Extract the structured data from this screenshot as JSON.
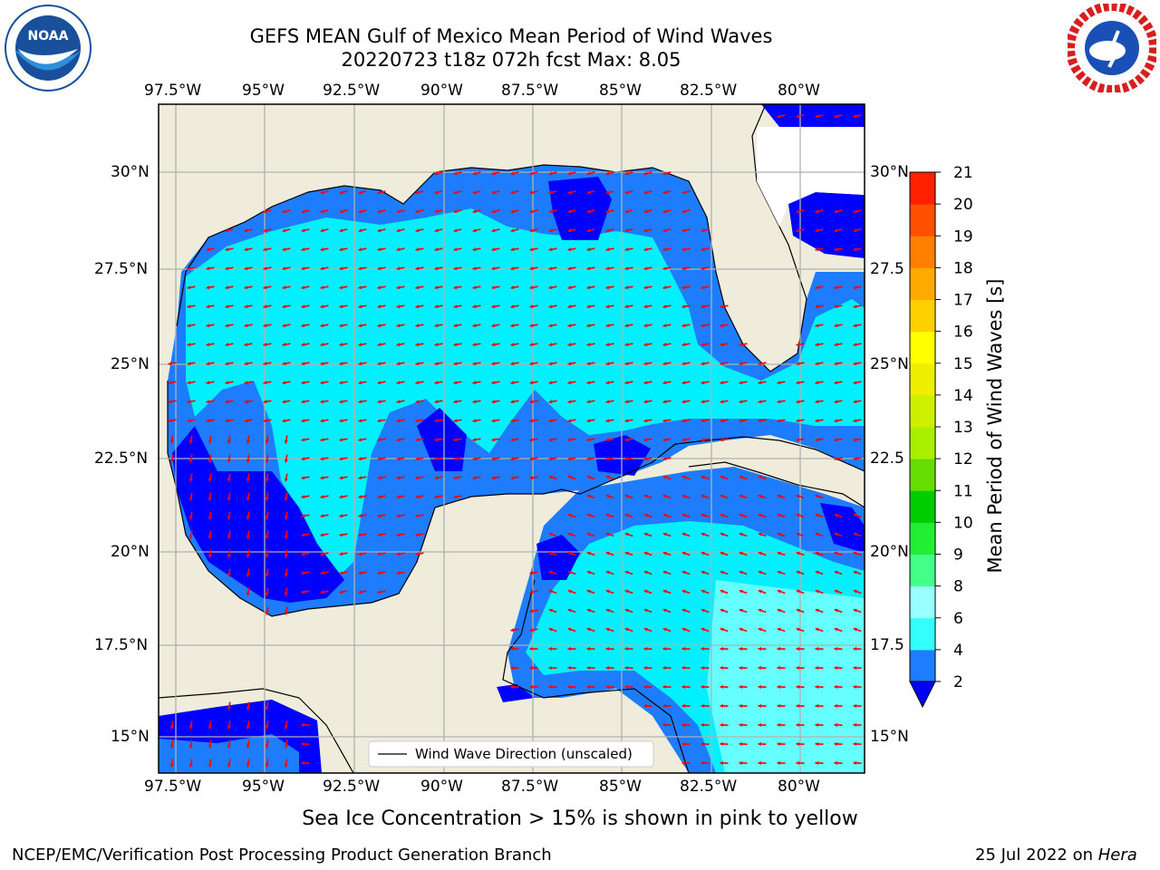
{
  "title": {
    "line1": "GEFS MEAN Gulf of Mexico Mean Period of Wind Waves",
    "line2": "20220723 t18z 072h fcst   Max: 8.05"
  },
  "logos": {
    "noaa": {
      "label": "NOAA",
      "icon": "noaa-logo-icon"
    },
    "nws": {
      "label": "NATIONAL WEATHER SERVICE",
      "icon": "nws-logo-icon"
    }
  },
  "map": {
    "lon_ticks": [
      "97.5°W",
      "95°W",
      "92.5°W",
      "90°W",
      "87.5°W",
      "85°W",
      "82.5°W",
      "80°W"
    ],
    "lat_ticks_left": [
      "30°N",
      "27.5°N",
      "25°N",
      "22.5°N",
      "20°N",
      "17.5°N",
      "15°N"
    ],
    "lat_ticks_right": [
      "30°N",
      "27.5",
      "25°N",
      "22.5",
      "20°N",
      "17.5",
      "15°N"
    ],
    "legend_label": "Wind Wave Direction (unscaled)",
    "colors": {
      "land": "#efecdc",
      "grid": "#b0b0b0",
      "arrow": "#ff0000",
      "band_2_4": "#0000ff",
      "band_4_6": "#1e7dff",
      "band_6_8": "#00e5ff",
      "band_8_9": "#66ffff"
    }
  },
  "colorbar": {
    "label": "Mean Period of Wind Waves [s]",
    "ticks": [
      "2",
      "4",
      "6",
      "8",
      "9",
      "10",
      "11",
      "12",
      "13",
      "14",
      "15",
      "16",
      "17",
      "18",
      "19",
      "20",
      "21"
    ],
    "colors": [
      "#1e7dff",
      "#00e5ff",
      "#33ffff",
      "#99ffff",
      "#44ff88",
      "#22ee33",
      "#00cc00",
      "#66dd00",
      "#aaee00",
      "#ccf000",
      "#eeee00",
      "#ffff00",
      "#ffd000",
      "#ffaa00",
      "#ff8000",
      "#ff5000",
      "#ff2000"
    ],
    "extend_color": "#0000ff"
  },
  "caption": "Sea Ice Concentration > 15% is shown in pink to yellow",
  "footer": {
    "left": "NCEP/EMC/Verification Post Processing Product Generation Branch",
    "right_date": "25 Jul 2022 on ",
    "right_host": "Hera"
  }
}
